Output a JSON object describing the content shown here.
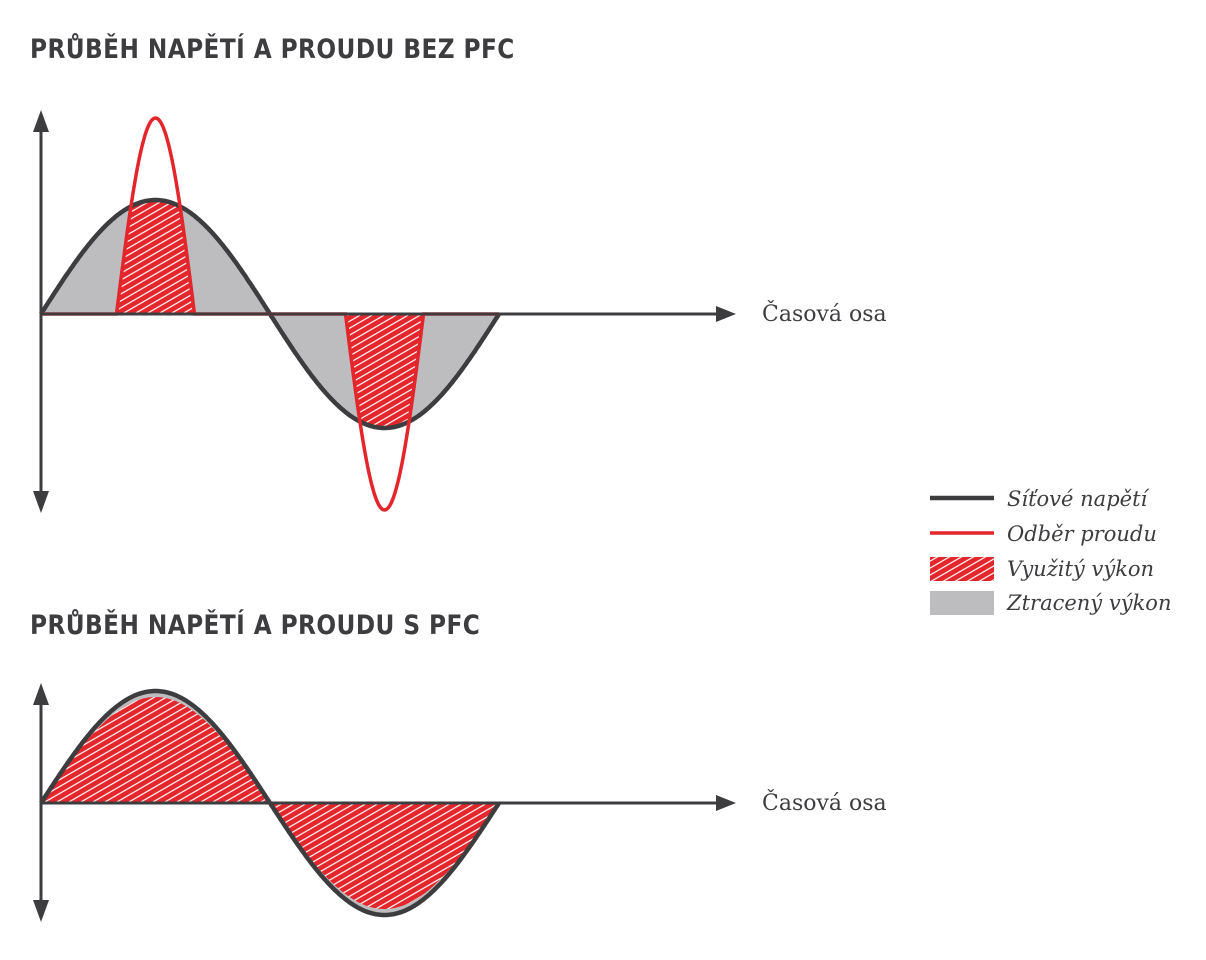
{
  "titles": {
    "without_pfc": "PRŮBĚH NAPĚTÍ A PROUDU BEZ PFC",
    "with_pfc": "PRŮBĚH NAPĚTÍ A PROUDU S PFC"
  },
  "axis_label": "Časová osa",
  "legend": [
    {
      "label": "Síťové napětí",
      "kind": "line",
      "color": "#3d3d40"
    },
    {
      "label": "Odběr proudu",
      "kind": "line",
      "color": "#e3262b"
    },
    {
      "label": "Využitý výkon",
      "kind": "hatch",
      "color": "#e3262b"
    },
    {
      "label": "Ztracený výkon",
      "kind": "fill",
      "color": "#bdbdbf"
    }
  ],
  "colors": {
    "voltage": "#3d3d40",
    "current": "#e3262b",
    "used_power": "#e3262b",
    "lost_power": "#bdbdbf",
    "axes": "#3d3d40"
  }
}
